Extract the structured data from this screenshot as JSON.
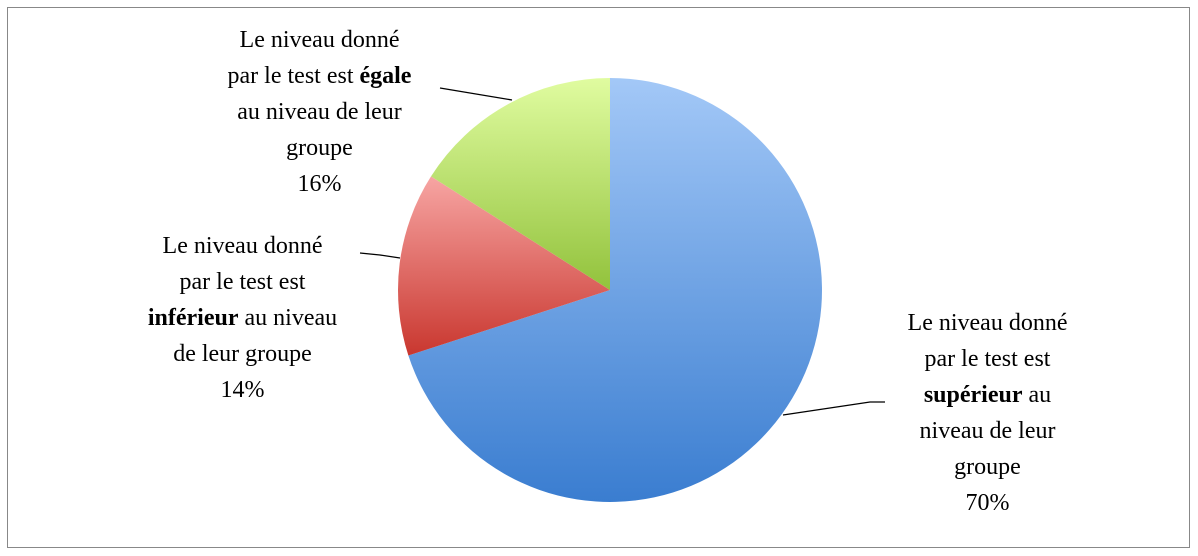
{
  "chart_data": {
    "type": "pie",
    "categories": [
      [
        "Le niveau donné par le test est",
        "supérieur",
        "au niveau de leur groupe"
      ],
      [
        "Le niveau donné par le test est",
        "inférieur",
        "au niveau de leur groupe"
      ],
      [
        "Le niveau donné par le test est",
        "égale",
        "au niveau de leur groupe"
      ]
    ],
    "values": [
      70,
      14,
      16
    ],
    "value_labels": [
      "70%",
      "14%",
      "16%"
    ],
    "colors": [
      [
        "#a3c8f7",
        "#3a7dd0"
      ],
      [
        "#f7a5a3",
        "#c9372f"
      ],
      [
        "#e0fca0",
        "#92c23c"
      ]
    ]
  }
}
